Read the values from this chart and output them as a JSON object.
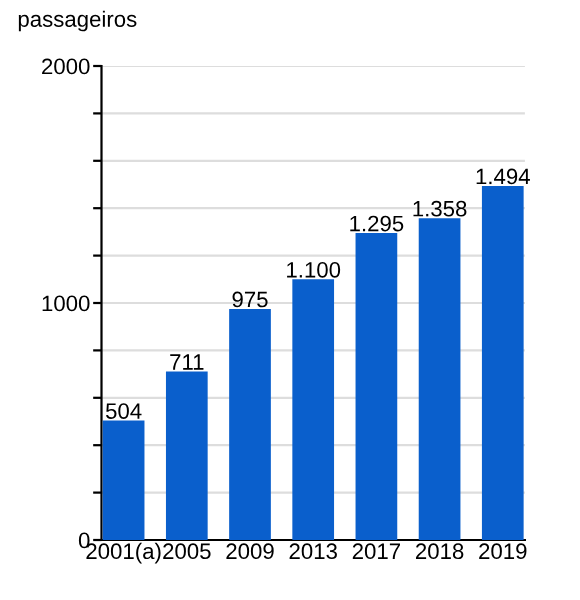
{
  "chart_data": {
    "type": "bar",
    "ylabel": "passageiros",
    "categories": [
      "2001(a)",
      "2005",
      "2009",
      "2013",
      "2017",
      "2018",
      "2019"
    ],
    "values": [
      504,
      711,
      975,
      1100,
      1295,
      1358,
      1494
    ],
    "value_labels": [
      "504",
      "711",
      "975",
      "1.100",
      "1.295",
      "1.358",
      "1.494"
    ],
    "color": "#0a5fcc",
    "ylim": [
      0,
      2000
    ],
    "yticks": [
      0,
      {
        "value": 200,
        "label": null
      },
      {
        "value": 400,
        "label": null
      },
      {
        "value": 600,
        "label": null
      },
      {
        "value": 800,
        "label": null
      },
      1000,
      {
        "value": 1200,
        "label": null
      },
      {
        "value": 1400,
        "label": null
      },
      {
        "value": 1600,
        "label": null
      },
      {
        "value": 1800,
        "label": null
      },
      2000
    ],
    "grid": "y",
    "legend": false
  }
}
